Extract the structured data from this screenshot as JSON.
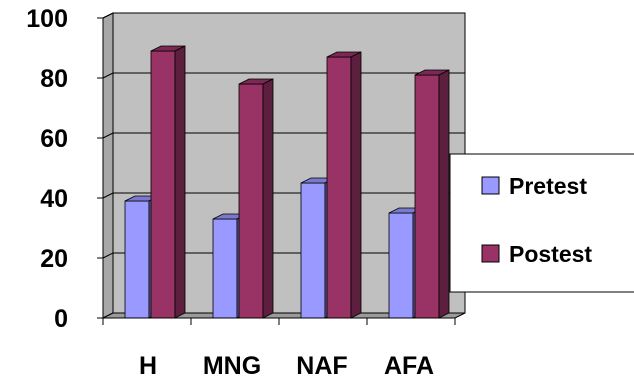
{
  "chart_data": {
    "type": "bar",
    "categories": [
      "H",
      "MNG",
      "NAF",
      "AFA"
    ],
    "series": [
      {
        "name": "Pretest",
        "values": [
          39,
          33,
          45,
          35
        ],
        "color": "#9999ff"
      },
      {
        "name": "Postest",
        "values": [
          89,
          78,
          87,
          81
        ],
        "color": "#993366"
      }
    ],
    "ylim": [
      0,
      100
    ],
    "yticks": [
      0,
      20,
      40,
      60,
      80,
      100
    ],
    "grid": true,
    "legend_position": "right",
    "title": "",
    "xlabel": "",
    "ylabel": "",
    "style": "3d-column"
  }
}
